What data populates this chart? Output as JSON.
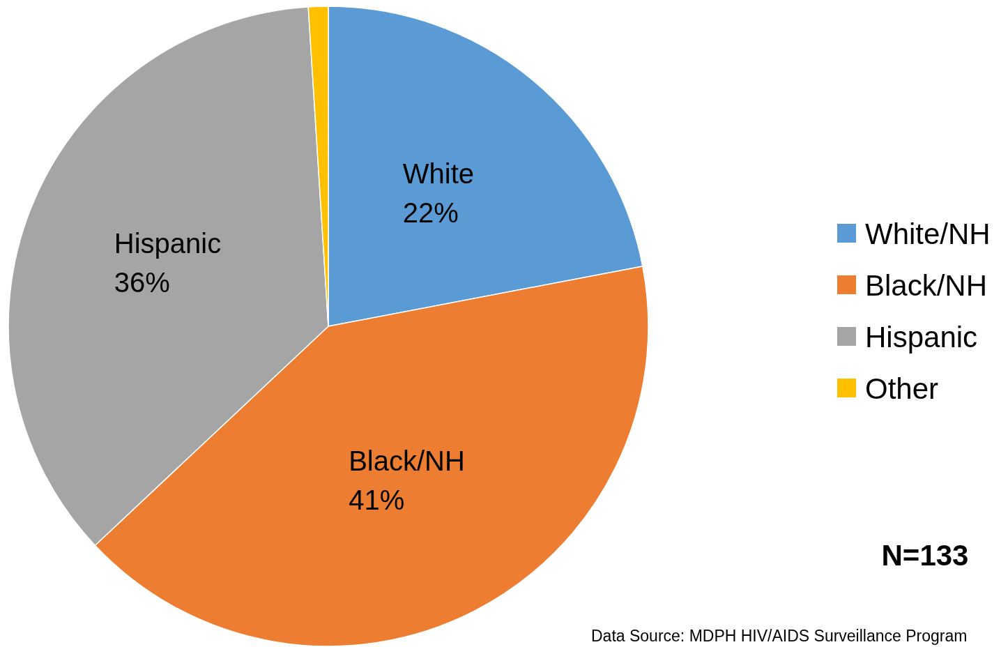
{
  "chart_data": {
    "type": "pie",
    "categories": [
      "White/NH",
      "Black/NH",
      "Hispanic",
      "Other"
    ],
    "values": [
      22,
      41,
      36,
      1
    ],
    "colors": [
      "#5b9bd5",
      "#ed7d31",
      "#a5a5a5",
      "#ffc000"
    ],
    "value_labels": [
      "White\n22%",
      "Black/NH\n41%",
      "Hispanic\n36%",
      null
    ],
    "legend": "right",
    "annotations": [
      "N=133",
      "Data Source: MDPH HIV/AIDS Surveillance Program"
    ]
  }
}
